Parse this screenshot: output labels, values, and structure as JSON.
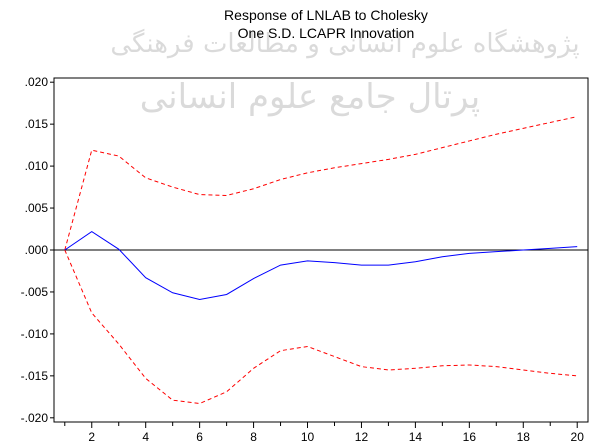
{
  "chart_data": {
    "type": "line",
    "title": [
      "Response of LNLAB to Cholesky",
      "One S.D. LCAPR Innovation"
    ],
    "xlabel": "",
    "ylabel": "",
    "xlim": [
      0.6,
      20.4
    ],
    "ylim": [
      -0.0205,
      0.0205
    ],
    "x": [
      1,
      2,
      3,
      4,
      5,
      6,
      7,
      8,
      9,
      10,
      11,
      12,
      13,
      14,
      15,
      16,
      17,
      18,
      19,
      20
    ],
    "x_ticks": [
      2,
      4,
      6,
      8,
      10,
      12,
      14,
      16,
      18,
      20
    ],
    "x_tick_labels": [
      "2",
      "4",
      "6",
      "8",
      "10",
      "12",
      "14",
      "16",
      "18",
      "20"
    ],
    "y_ticks": [
      0.02,
      0.015,
      0.01,
      0.005,
      0.0,
      -0.005,
      -0.01,
      -0.015,
      -0.02
    ],
    "y_tick_labels": [
      ".020",
      ".015",
      ".010",
      ".005",
      ".000",
      "-.005",
      "-.010",
      "-.015",
      "-.020"
    ],
    "zero_line": true,
    "grid": false,
    "legend": "none",
    "series": [
      {
        "role": "response",
        "style": "solid",
        "color": "#0000ff",
        "values": [
          0.0,
          0.0022,
          0.0001,
          -0.0033,
          -0.0051,
          -0.0059,
          -0.0053,
          -0.0034,
          -0.0018,
          -0.0013,
          -0.0015,
          -0.0018,
          -0.0018,
          -0.0014,
          -0.0008,
          -0.0004,
          -0.0002,
          0.0,
          0.0002,
          0.0004
        ]
      },
      {
        "role": "upper-band",
        "style": "dashed",
        "color": "#ff0000",
        "values": [
          0.0,
          0.0119,
          0.0112,
          0.0086,
          0.0075,
          0.0066,
          0.0065,
          0.0073,
          0.0084,
          0.0092,
          0.0098,
          0.0103,
          0.0108,
          0.0114,
          0.0122,
          0.013,
          0.0138,
          0.0145,
          0.0152,
          0.0159
        ]
      },
      {
        "role": "lower-band",
        "style": "dashed",
        "color": "#ff0000",
        "values": [
          0.0,
          -0.0075,
          -0.0112,
          -0.0153,
          -0.0179,
          -0.0183,
          -0.0169,
          -0.0141,
          -0.012,
          -0.0115,
          -0.0127,
          -0.0139,
          -0.0143,
          -0.0141,
          -0.0138,
          -0.0137,
          -0.0139,
          -0.0143,
          -0.0147,
          -0.015
        ]
      }
    ]
  },
  "watermark": {
    "line1": "پژوهشگاه علوم انسانی و مطالعات فرهنگی",
    "line2": "پرتال جامع علوم انسانی"
  }
}
